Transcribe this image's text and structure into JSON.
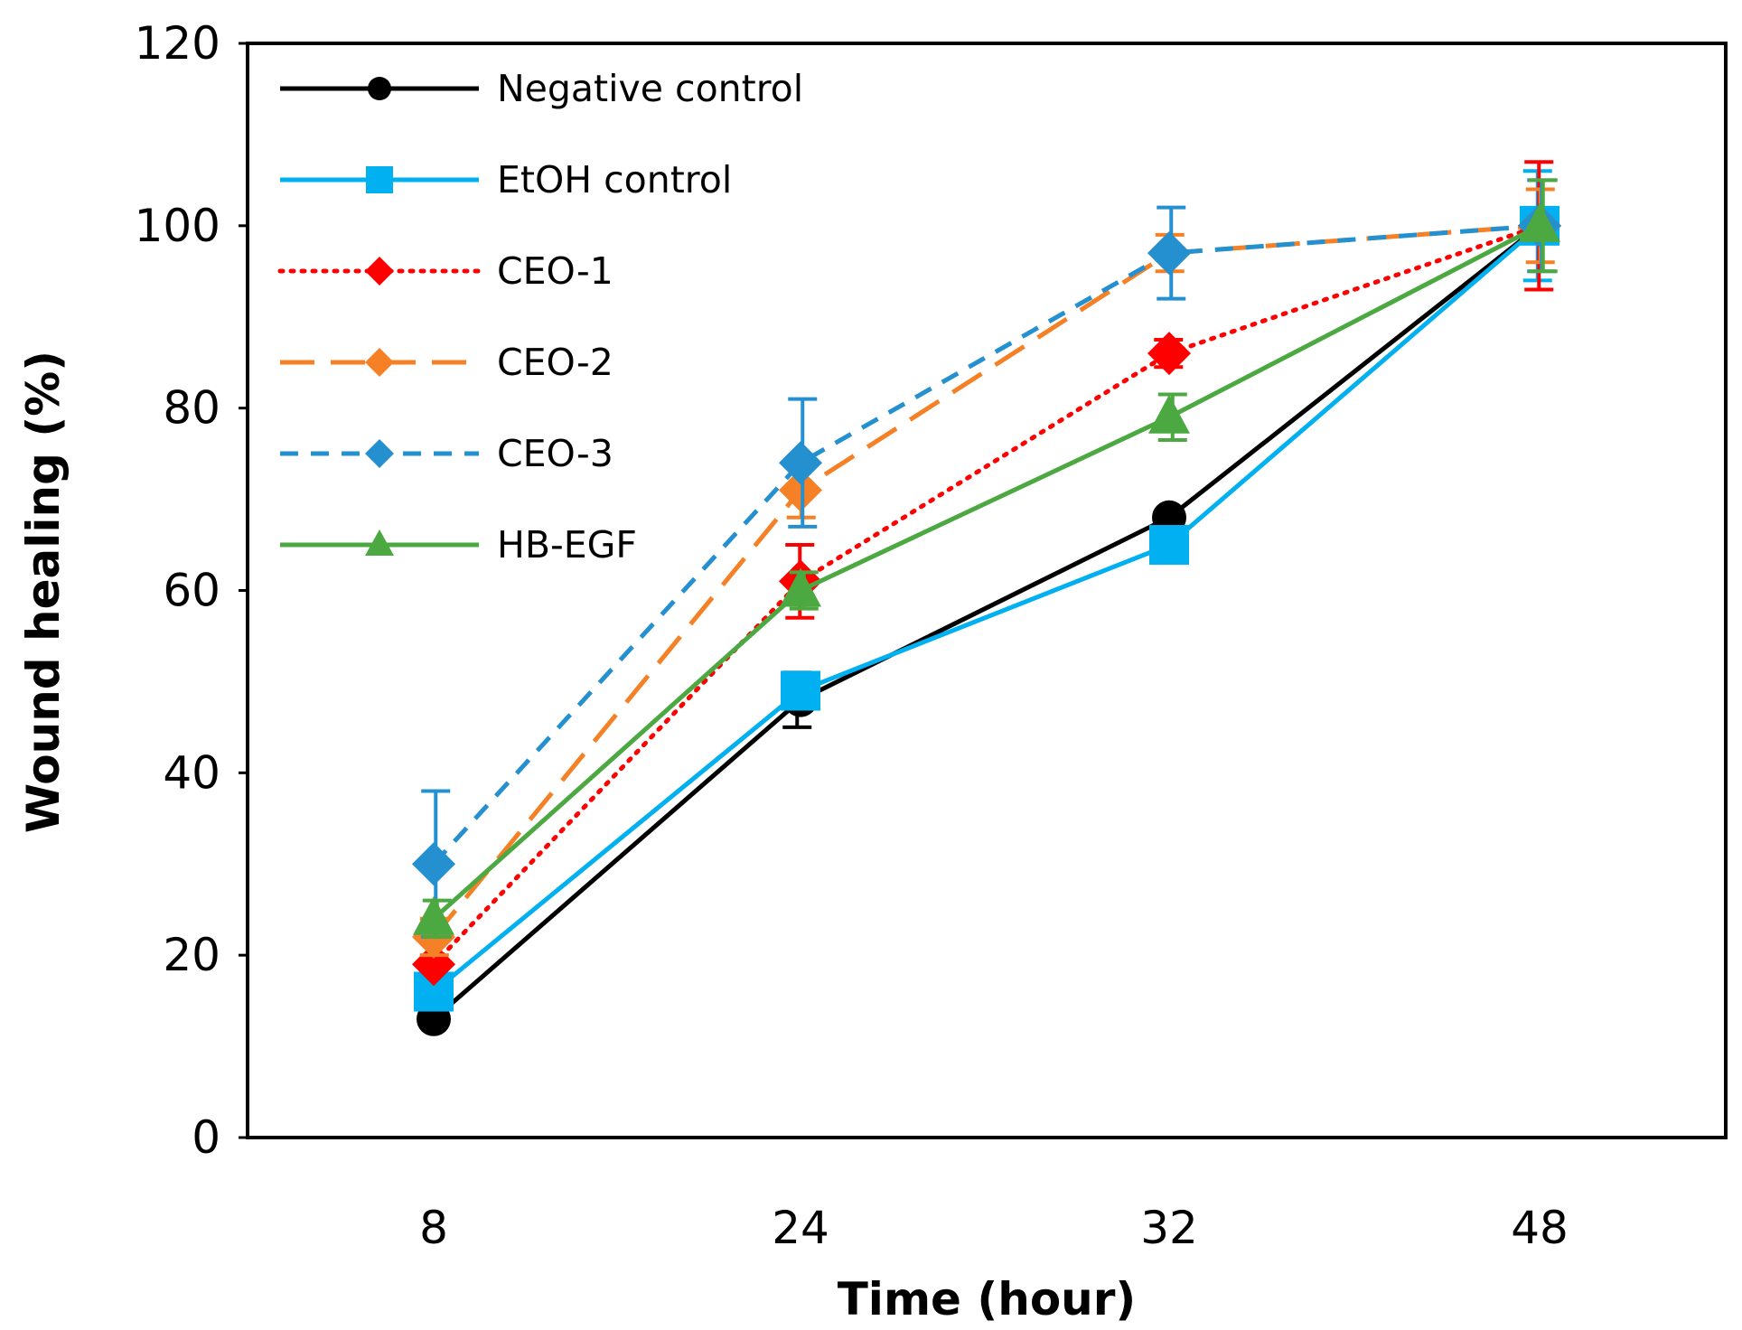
{
  "chart_data": {
    "type": "line",
    "xlabel": "Time (hour)",
    "ylabel": "Wound healing (%)",
    "ylim": [
      0,
      120
    ],
    "yticks": [
      0,
      20,
      40,
      60,
      80,
      100,
      120
    ],
    "categories": [
      "8",
      "24",
      "32",
      "48"
    ],
    "legend_position": "top-left",
    "series": [
      {
        "name": "Negative control",
        "color": "#000000",
        "dash": "solid",
        "marker": "circle",
        "values": [
          13,
          48,
          68,
          100
        ],
        "errors": [
          0,
          3,
          0,
          0
        ]
      },
      {
        "name": "EtOH control",
        "color": "#00B0F0",
        "dash": "solid",
        "marker": "square",
        "values": [
          16,
          49,
          65,
          100
        ],
        "errors": [
          0,
          0,
          0,
          6
        ]
      },
      {
        "name": "CEO-1",
        "color": "#FF0000",
        "dash": "dotted",
        "marker": "diamond",
        "values": [
          19,
          61,
          86,
          100
        ],
        "errors": [
          0,
          4,
          1.5,
          7
        ]
      },
      {
        "name": "CEO-2",
        "color": "#F58025",
        "dash": "longdash",
        "marker": "diamond",
        "values": [
          22,
          71,
          97,
          100
        ],
        "errors": [
          2,
          3,
          2,
          4
        ]
      },
      {
        "name": "CEO-3",
        "color": "#2590D0",
        "dash": "shortdash",
        "marker": "diamond",
        "values": [
          30,
          74,
          97,
          100
        ],
        "errors": [
          8,
          7,
          5,
          5
        ]
      },
      {
        "name": "HB-EGF",
        "color": "#4CA840",
        "dash": "solid",
        "marker": "triangle",
        "values": [
          24,
          60,
          79,
          100
        ],
        "errors": [
          2,
          2,
          2.5,
          5
        ]
      }
    ]
  }
}
